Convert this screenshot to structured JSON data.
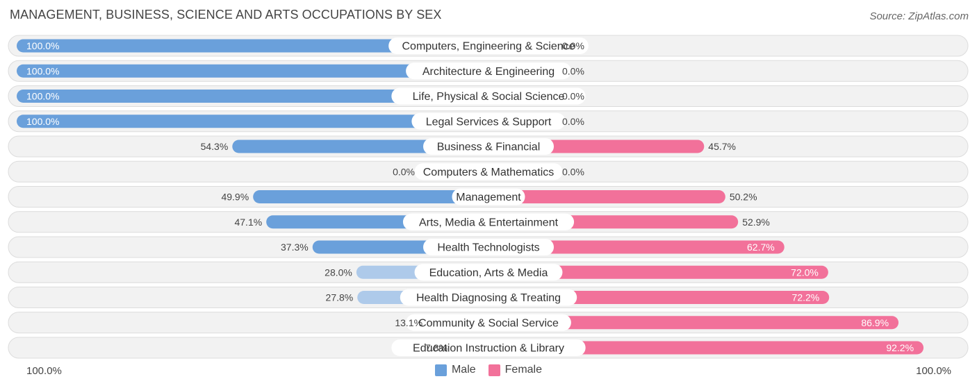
{
  "header": {
    "title": "MANAGEMENT, BUSINESS, SCIENCE AND ARTS OCCUPATIONS BY SEX",
    "source": "Source: ZipAtlas.com"
  },
  "colors": {
    "male": "#6aa0db",
    "male_light": "#aecaea",
    "female": "#f2719a",
    "female_light": "#f7b1c8",
    "row_bg": "#f2f2f2",
    "row_border": "#dcdcdc"
  },
  "chart_data": {
    "type": "bar",
    "orientation": "horizontal-diverging",
    "title": "MANAGEMENT, BUSINESS, SCIENCE AND ARTS OCCUPATIONS BY SEX",
    "categories": [
      "Computers, Engineering & Science",
      "Architecture & Engineering",
      "Life, Physical & Social Science",
      "Legal Services & Support",
      "Business & Financial",
      "Computers & Mathematics",
      "Management",
      "Arts, Media & Entertainment",
      "Health Technologists",
      "Education, Arts & Media",
      "Health Diagnosing & Treating",
      "Community & Social Service",
      "Education Instruction & Library"
    ],
    "series": [
      {
        "name": "Male",
        "values": [
          100.0,
          100.0,
          100.0,
          100.0,
          54.3,
          0.0,
          49.9,
          47.1,
          37.3,
          28.0,
          27.8,
          13.1,
          7.8
        ],
        "labels": [
          "100.0%",
          "100.0%",
          "100.0%",
          "100.0%",
          "54.3%",
          "0.0%",
          "49.9%",
          "47.1%",
          "37.3%",
          "28.0%",
          "27.8%",
          "13.1%",
          "7.8%"
        ]
      },
      {
        "name": "Female",
        "values": [
          0.0,
          0.0,
          0.0,
          0.0,
          45.7,
          0.0,
          50.2,
          52.9,
          62.7,
          72.0,
          72.2,
          86.9,
          92.2
        ],
        "labels": [
          "0.0%",
          "0.0%",
          "0.0%",
          "0.0%",
          "45.7%",
          "0.0%",
          "50.2%",
          "52.9%",
          "62.7%",
          "72.0%",
          "72.2%",
          "86.9%",
          "92.2%"
        ]
      }
    ],
    "xlim": [
      0,
      100
    ],
    "axis_left_label": "100.0%",
    "axis_right_label": "100.0%",
    "legend": [
      "Male",
      "Female"
    ],
    "legend_position": "bottom-center"
  }
}
